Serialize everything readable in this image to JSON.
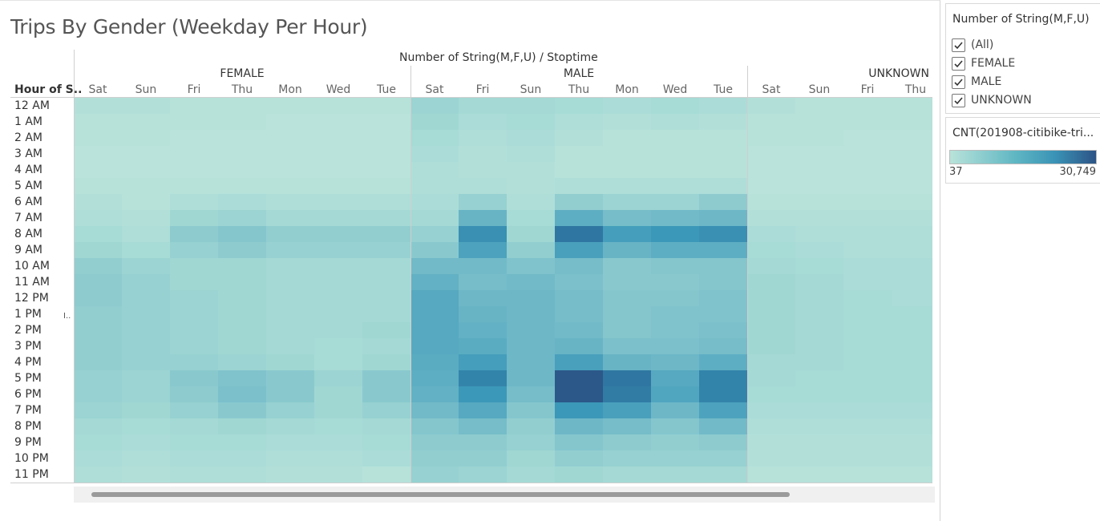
{
  "chart_data": {
    "type": "heatmap",
    "title": "Trips By Gender (Weekday Per Hour)",
    "column_header": "Number of String(M,F,U)  /  Stoptime",
    "row_header": "Hour of S..",
    "groups": [
      {
        "name": "FEMALE",
        "days": [
          "Sat",
          "Sun",
          "Fri",
          "Thu",
          "Mon",
          "Wed",
          "Tue"
        ],
        "values": [
          [
            3,
            3,
            2,
            2,
            2,
            2,
            2
          ],
          [
            2,
            2,
            2,
            2,
            1,
            1,
            1
          ],
          [
            2,
            2,
            1,
            1,
            1,
            1,
            1
          ],
          [
            1,
            1,
            1,
            1,
            1,
            1,
            1
          ],
          [
            1,
            1,
            1,
            1,
            1,
            1,
            1
          ],
          [
            2,
            2,
            2,
            2,
            2,
            2,
            2
          ],
          [
            3,
            2,
            4,
            5,
            4,
            4,
            4
          ],
          [
            4,
            3,
            8,
            9,
            7,
            7,
            7
          ],
          [
            6,
            4,
            12,
            14,
            11,
            11,
            11
          ],
          [
            8,
            6,
            10,
            12,
            10,
            10,
            10
          ],
          [
            11,
            9,
            8,
            8,
            7,
            7,
            7
          ],
          [
            12,
            10,
            8,
            8,
            7,
            7,
            7
          ],
          [
            12,
            10,
            9,
            8,
            7,
            7,
            7
          ],
          [
            11,
            10,
            9,
            8,
            7,
            7,
            7
          ],
          [
            11,
            10,
            9,
            8,
            7,
            7,
            8
          ],
          [
            11,
            10,
            9,
            8,
            7,
            6,
            7
          ],
          [
            11,
            10,
            10,
            9,
            8,
            6,
            8
          ],
          [
            10,
            9,
            13,
            15,
            13,
            9,
            13
          ],
          [
            10,
            9,
            12,
            16,
            13,
            8,
            13
          ],
          [
            9,
            8,
            10,
            13,
            10,
            8,
            10
          ],
          [
            7,
            6,
            7,
            8,
            7,
            6,
            7
          ],
          [
            6,
            5,
            6,
            6,
            5,
            5,
            6
          ],
          [
            5,
            4,
            5,
            5,
            4,
            4,
            5
          ],
          [
            4,
            3,
            4,
            4,
            3,
            3,
            2
          ]
        ]
      },
      {
        "name": "MALE",
        "days": [
          "Sat",
          "Fri",
          "Sun",
          "Thu",
          "Mon",
          "Wed",
          "Tue"
        ],
        "values": [
          [
            9,
            7,
            7,
            6,
            5,
            6,
            5
          ],
          [
            8,
            5,
            6,
            4,
            3,
            4,
            3
          ],
          [
            6,
            4,
            5,
            3,
            2,
            2,
            2
          ],
          [
            5,
            3,
            4,
            2,
            2,
            2,
            2
          ],
          [
            4,
            3,
            3,
            2,
            2,
            2,
            2
          ],
          [
            4,
            4,
            3,
            4,
            4,
            4,
            4
          ],
          [
            5,
            10,
            4,
            11,
            9,
            9,
            12
          ],
          [
            7,
            20,
            6,
            22,
            17,
            18,
            19
          ],
          [
            10,
            32,
            8,
            38,
            28,
            30,
            32
          ],
          [
            13,
            26,
            11,
            27,
            20,
            22,
            22
          ],
          [
            18,
            18,
            15,
            17,
            13,
            14,
            14
          ],
          [
            21,
            17,
            18,
            16,
            13,
            13,
            14
          ],
          [
            24,
            19,
            19,
            17,
            14,
            14,
            15
          ],
          [
            24,
            20,
            19,
            17,
            14,
            15,
            15
          ],
          [
            24,
            21,
            19,
            18,
            14,
            15,
            16
          ],
          [
            24,
            23,
            19,
            20,
            16,
            16,
            17
          ],
          [
            23,
            28,
            19,
            27,
            20,
            19,
            22
          ],
          [
            22,
            35,
            19,
            44,
            38,
            24,
            35
          ],
          [
            21,
            30,
            17,
            44,
            37,
            25,
            35
          ],
          [
            18,
            24,
            14,
            30,
            27,
            19,
            26
          ],
          [
            14,
            17,
            11,
            19,
            17,
            14,
            18
          ],
          [
            12,
            12,
            10,
            14,
            12,
            11,
            12
          ],
          [
            11,
            11,
            8,
            11,
            10,
            10,
            10
          ],
          [
            10,
            9,
            7,
            8,
            7,
            7,
            7
          ]
        ]
      },
      {
        "name": "UNKNOWN",
        "days": [
          "Sat",
          "Sun",
          "Fri",
          "Thu"
        ],
        "values": [
          [
            3,
            2,
            2,
            2
          ],
          [
            2,
            2,
            2,
            2
          ],
          [
            2,
            2,
            1,
            1
          ],
          [
            1,
            1,
            1,
            1
          ],
          [
            1,
            1,
            1,
            1
          ],
          [
            1,
            1,
            1,
            1
          ],
          [
            2,
            2,
            2,
            2
          ],
          [
            3,
            3,
            3,
            3
          ],
          [
            5,
            4,
            4,
            4
          ],
          [
            6,
            5,
            4,
            4
          ],
          [
            7,
            6,
            5,
            5
          ],
          [
            8,
            7,
            5,
            5
          ],
          [
            8,
            7,
            6,
            5
          ],
          [
            8,
            7,
            6,
            6
          ],
          [
            8,
            7,
            6,
            6
          ],
          [
            8,
            7,
            6,
            6
          ],
          [
            7,
            7,
            6,
            6
          ],
          [
            7,
            6,
            6,
            6
          ],
          [
            6,
            6,
            6,
            6
          ],
          [
            5,
            5,
            5,
            5
          ],
          [
            4,
            4,
            4,
            4
          ],
          [
            3,
            3,
            3,
            3
          ],
          [
            3,
            3,
            3,
            3
          ],
          [
            2,
            2,
            2,
            2
          ]
        ]
      }
    ],
    "rows": [
      "12 AM",
      "1 AM",
      "2 AM",
      "3 AM",
      "4 AM",
      "5 AM",
      "6 AM",
      "7 AM",
      "8 AM",
      "9 AM",
      "10 AM",
      "11 AM",
      "12 PM",
      "1 PM",
      "2 PM",
      "3 PM",
      "4 PM",
      "5 PM",
      "6 PM",
      "7 PM",
      "8 PM",
      "9 PM",
      "10 PM",
      "11 PM"
    ],
    "color_min": 0,
    "color_max": 45,
    "colors": [
      "#bde5dc",
      "#a2d8d4",
      "#80c3cc",
      "#5cadc2",
      "#3c98b8",
      "#2f7aa4",
      "#2c5385"
    ]
  },
  "filter_panel": {
    "title": "Number of String(M,F,U)",
    "items": [
      {
        "label": "(All)",
        "checked": true
      },
      {
        "label": "FEMALE",
        "checked": true
      },
      {
        "label": "MALE",
        "checked": true
      },
      {
        "label": "UNKNOWN",
        "checked": true
      }
    ]
  },
  "legend_panel": {
    "title": "CNT(201908-citibike-tri...",
    "min_label": "37",
    "max_label": "30,749"
  }
}
